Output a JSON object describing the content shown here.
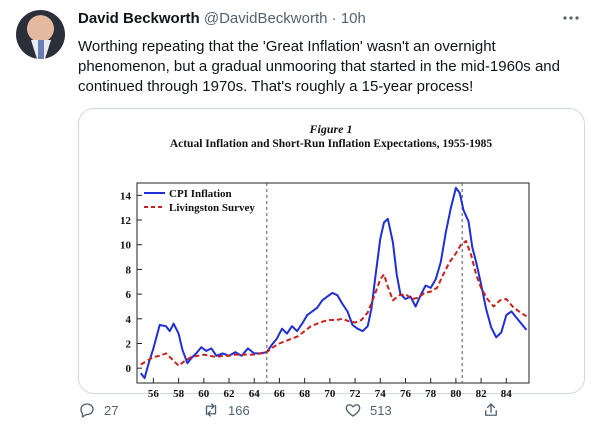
{
  "tweet": {
    "author_name": "David Beckworth",
    "handle": "@DavidBeckworth",
    "separator": "·",
    "time": "10h",
    "more_icon": "more-horizontal-icon",
    "text": "Worthing repeating that the 'Great Inflation' wasn't an overnight phenomenon, but a gradual unmooring that started in the mid-1960s and continued through 1970s. That's roughly a 15-year process!"
  },
  "actions": {
    "reply_count": "27",
    "retweet_count": "166",
    "like_count": "513",
    "reply_icon": "reply-icon",
    "retweet_icon": "retweet-icon",
    "like_icon": "heart-icon",
    "share_icon": "share-icon"
  },
  "chart_data": {
    "type": "line",
    "figure_label": "Figure 1",
    "title": "Actual Inflation and Short-Run Inflation Expectations, 1955-1985",
    "xlabel": "",
    "ylabel": "",
    "xlim": [
      1954.7,
      1985.8
    ],
    "ylim": [
      -1.2,
      15
    ],
    "x_ticks": [
      "56",
      "58",
      "60",
      "62",
      "64",
      "66",
      "68",
      "70",
      "72",
      "74",
      "76",
      "78",
      "80",
      "82",
      "84"
    ],
    "y_ticks": [
      "0",
      "2",
      "4",
      "6",
      "8",
      "10",
      "12",
      "14"
    ],
    "legend_position": "top-left",
    "vertical_markers": [
      1965,
      1980.5
    ],
    "colors": {
      "cpi": "#1f2fd6",
      "livingston": "#c8201c"
    },
    "series": [
      {
        "name": "CPI Inflation",
        "style": "solid",
        "x": [
          1955.0,
          1955.3,
          1955.6,
          1956.0,
          1956.5,
          1957.0,
          1957.3,
          1957.6,
          1958.0,
          1958.3,
          1958.7,
          1959.0,
          1959.4,
          1959.8,
          1960.2,
          1960.6,
          1961.0,
          1961.5,
          1962.0,
          1962.5,
          1963.0,
          1963.5,
          1964.0,
          1964.5,
          1965.0,
          1965.4,
          1965.8,
          1966.2,
          1966.6,
          1967.0,
          1967.4,
          1967.8,
          1968.2,
          1968.6,
          1969.0,
          1969.4,
          1969.8,
          1970.2,
          1970.6,
          1971.0,
          1971.4,
          1971.8,
          1972.2,
          1972.6,
          1973.0,
          1973.3,
          1973.6,
          1974.0,
          1974.3,
          1974.6,
          1975.0,
          1975.3,
          1975.6,
          1976.0,
          1976.4,
          1976.8,
          1977.2,
          1977.6,
          1978.0,
          1978.4,
          1978.8,
          1979.2,
          1979.6,
          1980.0,
          1980.3,
          1980.6,
          1981.0,
          1981.3,
          1981.6,
          1982.0,
          1982.4,
          1982.8,
          1983.2,
          1983.6,
          1984.0,
          1984.4,
          1984.8,
          1985.2,
          1985.6
        ],
        "y": [
          -0.4,
          -0.8,
          0.3,
          1.6,
          3.5,
          3.4,
          3.0,
          3.6,
          2.8,
          1.5,
          0.4,
          0.8,
          1.2,
          1.7,
          1.4,
          1.6,
          1.0,
          1.2,
          1.0,
          1.3,
          1.0,
          1.6,
          1.2,
          1.2,
          1.3,
          1.9,
          2.4,
          3.2,
          2.8,
          3.4,
          3.0,
          3.6,
          4.3,
          4.6,
          4.9,
          5.5,
          5.8,
          6.1,
          5.9,
          5.2,
          4.6,
          3.5,
          3.2,
          3.0,
          3.4,
          4.8,
          7.3,
          10.5,
          11.8,
          12.1,
          10.2,
          7.6,
          6.0,
          5.6,
          5.8,
          5.0,
          5.9,
          6.7,
          6.5,
          7.2,
          8.6,
          11.0,
          13.0,
          14.6,
          14.2,
          12.8,
          11.9,
          9.8,
          8.6,
          6.8,
          4.8,
          3.3,
          2.5,
          2.9,
          4.3,
          4.6,
          4.1,
          3.6,
          3.1
        ]
      },
      {
        "name": "Livingston Survey",
        "style": "dashed",
        "x": [
          1955.0,
          1955.5,
          1956.0,
          1956.5,
          1957.0,
          1957.5,
          1958.0,
          1958.5,
          1959.0,
          1959.5,
          1960.0,
          1960.5,
          1961.0,
          1961.5,
          1962.0,
          1962.5,
          1963.0,
          1963.5,
          1964.0,
          1964.5,
          1965.0,
          1965.5,
          1966.0,
          1966.5,
          1967.0,
          1967.5,
          1968.0,
          1968.5,
          1969.0,
          1969.5,
          1970.0,
          1970.5,
          1971.0,
          1971.5,
          1972.0,
          1972.5,
          1973.0,
          1973.5,
          1974.0,
          1974.3,
          1974.6,
          1975.0,
          1975.5,
          1976.0,
          1976.5,
          1977.0,
          1977.5,
          1978.0,
          1978.5,
          1979.0,
          1979.5,
          1980.0,
          1980.4,
          1980.8,
          1981.2,
          1981.6,
          1982.0,
          1982.5,
          1983.0,
          1983.5,
          1984.0,
          1984.5,
          1985.0,
          1985.6
        ],
        "y": [
          0.3,
          0.6,
          0.9,
          1.0,
          1.2,
          0.7,
          0.2,
          0.6,
          0.9,
          1.0,
          1.1,
          1.0,
          0.9,
          1.0,
          1.0,
          1.1,
          1.1,
          1.1,
          1.1,
          1.2,
          1.3,
          1.7,
          2.0,
          2.2,
          2.4,
          2.6,
          3.0,
          3.4,
          3.6,
          3.8,
          3.9,
          3.9,
          4.0,
          3.8,
          3.7,
          3.9,
          4.5,
          5.8,
          7.2,
          7.6,
          6.6,
          5.5,
          5.9,
          6.0,
          5.6,
          5.7,
          6.1,
          6.2,
          6.5,
          7.6,
          8.6,
          9.3,
          10.0,
          10.3,
          9.2,
          7.6,
          6.5,
          5.6,
          5.0,
          5.5,
          5.6,
          5.0,
          4.6,
          4.2
        ]
      }
    ]
  }
}
